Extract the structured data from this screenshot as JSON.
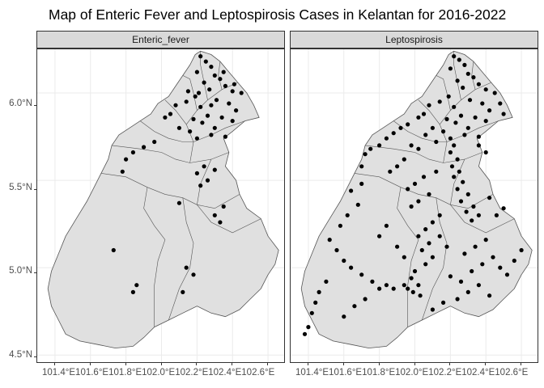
{
  "title": "Map of Enteric Fever and Leptospirosis Cases in Kelantan for 2016-2022",
  "panels": [
    {
      "label": "Enteric_fever"
    },
    {
      "label": "Leptospirosis"
    }
  ],
  "y_ticks": [
    "6.0°N",
    "5.5°N",
    "5.0°N",
    "4.5°N"
  ],
  "x_ticks_text": "101.4°E101.6°E101.8°E102.0°E102.2°E102.4°E102.6°E",
  "x_ticks": [
    "101.4°E",
    "101.6°E",
    "101.8°E",
    "102.0°E",
    "102.2°E",
    "102.4°E",
    "102.6°E"
  ],
  "colors": {
    "land_fill": "#e0e0e0",
    "border": "#555555",
    "point": "#000000",
    "grid": "#ebebeb",
    "strip": "#d9d9d9"
  },
  "chart_data": {
    "type": "scatter",
    "title": "Map of Enteric Fever and Leptospirosis Cases in Kelantan for 2016-2022",
    "xlabel": "",
    "ylabel": "",
    "xlim": [
      101.3,
      102.7
    ],
    "ylim": [
      4.45,
      6.25
    ],
    "grid": true,
    "facets": [
      "Enteric_fever",
      "Leptospirosis"
    ],
    "series": [
      {
        "name": "Enteric_fever",
        "points": [
          [
            102.22,
            6.21
          ],
          [
            102.25,
            6.18
          ],
          [
            102.28,
            6.15
          ],
          [
            102.2,
            6.12
          ],
          [
            102.3,
            6.1
          ],
          [
            102.33,
            6.08
          ],
          [
            102.24,
            6.06
          ],
          [
            102.36,
            6.04
          ],
          [
            102.27,
            6.02
          ],
          [
            102.4,
            6.01
          ],
          [
            102.45,
            6.0
          ],
          [
            102.19,
            5.98
          ],
          [
            102.31,
            5.96
          ],
          [
            102.38,
            5.94
          ],
          [
            102.22,
            5.92
          ],
          [
            102.42,
            5.9
          ],
          [
            102.14,
            5.95
          ],
          [
            102.08,
            5.93
          ],
          [
            102.05,
            5.88
          ],
          [
            102.26,
            5.87
          ],
          [
            102.34,
            5.86
          ],
          [
            102.18,
            5.85
          ],
          [
            102.4,
            5.84
          ],
          [
            102.23,
            5.83
          ],
          [
            102.3,
            5.8
          ],
          [
            102.16,
            5.78
          ],
          [
            102.28,
            5.76
          ],
          [
            102.36,
            5.75
          ],
          [
            102.2,
            5.74
          ],
          [
            102.1,
            5.8
          ],
          [
            102.02,
            5.86
          ],
          [
            101.96,
            5.72
          ],
          [
            101.9,
            5.69
          ],
          [
            101.84,
            5.66
          ],
          [
            101.8,
            5.62
          ],
          [
            102.24,
            5.58
          ],
          [
            102.3,
            5.56
          ],
          [
            102.2,
            5.54
          ],
          [
            102.26,
            5.5
          ],
          [
            102.22,
            5.47
          ],
          [
            101.78,
            5.55
          ],
          [
            102.1,
            5.37
          ],
          [
            102.35,
            5.35
          ],
          [
            102.3,
            5.3
          ],
          [
            102.33,
            5.26
          ],
          [
            101.73,
            5.1
          ],
          [
            102.14,
            5.0
          ],
          [
            102.18,
            4.96
          ],
          [
            101.86,
            4.9
          ],
          [
            101.84,
            4.86
          ],
          [
            102.12,
            4.86
          ],
          [
            102.35,
            6.12
          ],
          [
            102.41,
            6.05
          ],
          [
            102.28,
            5.93
          ],
          [
            102.15,
            6.01
          ],
          [
            102.21,
            6.0
          ]
        ]
      },
      {
        "name": "Leptospirosis",
        "points": [
          [
            102.22,
            6.21
          ],
          [
            102.25,
            6.19
          ],
          [
            102.28,
            6.16
          ],
          [
            102.2,
            6.14
          ],
          [
            102.3,
            6.11
          ],
          [
            102.33,
            6.09
          ],
          [
            102.24,
            6.07
          ],
          [
            102.36,
            6.05
          ],
          [
            102.27,
            6.03
          ],
          [
            102.4,
            6.02
          ],
          [
            102.45,
            6.0
          ],
          [
            102.48,
            5.94
          ],
          [
            102.5,
            5.88
          ],
          [
            102.19,
            5.98
          ],
          [
            102.31,
            5.96
          ],
          [
            102.38,
            5.94
          ],
          [
            102.22,
            5.92
          ],
          [
            102.42,
            5.9
          ],
          [
            102.14,
            5.95
          ],
          [
            102.08,
            5.93
          ],
          [
            102.05,
            5.88
          ],
          [
            102.26,
            5.87
          ],
          [
            102.34,
            5.86
          ],
          [
            102.18,
            5.85
          ],
          [
            102.4,
            5.84
          ],
          [
            102.23,
            5.83
          ],
          [
            102.3,
            5.8
          ],
          [
            102.16,
            5.78
          ],
          [
            102.28,
            5.76
          ],
          [
            102.36,
            5.75
          ],
          [
            102.2,
            5.74
          ],
          [
            102.1,
            5.8
          ],
          [
            102.02,
            5.86
          ],
          [
            101.96,
            5.82
          ],
          [
            101.92,
            5.8
          ],
          [
            101.88,
            5.77
          ],
          [
            101.84,
            5.74
          ],
          [
            101.8,
            5.7
          ],
          [
            101.75,
            5.68
          ],
          [
            101.72,
            5.65
          ],
          [
            101.98,
            5.7
          ],
          [
            102.02,
            5.68
          ],
          [
            101.94,
            5.62
          ],
          [
            101.9,
            5.58
          ],
          [
            101.86,
            5.55
          ],
          [
            102.22,
            5.7
          ],
          [
            102.2,
            5.66
          ],
          [
            102.24,
            5.62
          ],
          [
            102.21,
            5.58
          ],
          [
            102.25,
            5.55
          ],
          [
            102.22,
            5.52
          ],
          [
            102.27,
            5.49
          ],
          [
            102.24,
            5.45
          ],
          [
            102.3,
            5.42
          ],
          [
            102.26,
            5.38
          ],
          [
            102.33,
            5.35
          ],
          [
            102.29,
            5.32
          ],
          [
            102.36,
            5.3
          ],
          [
            102.32,
            5.27
          ],
          [
            102.12,
            5.55
          ],
          [
            102.05,
            5.52
          ],
          [
            102.0,
            5.48
          ],
          [
            101.96,
            5.45
          ],
          [
            102.08,
            5.42
          ],
          [
            102.02,
            5.38
          ],
          [
            101.98,
            5.35
          ],
          [
            102.14,
            5.3
          ],
          [
            102.1,
            5.26
          ],
          [
            102.06,
            5.22
          ],
          [
            102.02,
            5.18
          ],
          [
            102.08,
            5.14
          ],
          [
            102.04,
            5.1
          ],
          [
            102.1,
            5.06
          ],
          [
            102.06,
            5.02
          ],
          [
            102.0,
            4.98
          ],
          [
            101.98,
            4.94
          ],
          [
            102.02,
            4.9
          ],
          [
            101.96,
            4.88
          ],
          [
            101.99,
            4.86
          ],
          [
            102.03,
            4.84
          ],
          [
            101.94,
            4.9
          ],
          [
            101.88,
            4.88
          ],
          [
            101.84,
            4.9
          ],
          [
            101.8,
            4.88
          ],
          [
            101.76,
            4.92
          ],
          [
            101.7,
            4.96
          ],
          [
            101.64,
            5.0
          ],
          [
            101.6,
            5.04
          ],
          [
            101.56,
            5.1
          ],
          [
            101.52,
            5.16
          ],
          [
            101.5,
            4.92
          ],
          [
            101.46,
            4.86
          ],
          [
            101.44,
            4.8
          ],
          [
            101.42,
            4.74
          ],
          [
            101.4,
            4.66
          ],
          [
            101.38,
            4.62
          ],
          [
            101.6,
            4.72
          ],
          [
            101.66,
            4.78
          ],
          [
            101.72,
            4.82
          ],
          [
            102.2,
            4.95
          ],
          [
            102.26,
            4.92
          ],
          [
            102.32,
            4.98
          ],
          [
            102.38,
            5.02
          ],
          [
            102.44,
            5.06
          ],
          [
            102.48,
            5.0
          ],
          [
            102.52,
            4.96
          ],
          [
            102.56,
            5.04
          ],
          [
            102.6,
            5.1
          ],
          [
            102.4,
            5.16
          ],
          [
            102.34,
            5.12
          ],
          [
            102.28,
            5.08
          ],
          [
            102.18,
            5.12
          ],
          [
            102.14,
            5.18
          ],
          [
            102.46,
            5.3
          ],
          [
            102.5,
            5.34
          ],
          [
            102.42,
            5.4
          ],
          [
            101.68,
            5.36
          ],
          [
            101.62,
            5.3
          ],
          [
            101.58,
            5.24
          ],
          [
            101.64,
            5.44
          ],
          [
            101.7,
            5.48
          ],
          [
            102.16,
            4.8
          ],
          [
            102.1,
            4.76
          ],
          [
            102.24,
            4.82
          ],
          [
            102.3,
            4.86
          ],
          [
            102.36,
            4.9
          ],
          [
            102.42,
            4.84
          ],
          [
            101.84,
            5.24
          ],
          [
            101.8,
            5.18
          ],
          [
            101.9,
            5.12
          ],
          [
            101.94,
            5.06
          ],
          [
            102.36,
            5.7
          ],
          [
            102.4,
            5.66
          ],
          [
            102.12,
            5.72
          ],
          [
            102.06,
            5.76
          ],
          [
            101.7,
            5.58
          ]
        ]
      }
    ]
  }
}
